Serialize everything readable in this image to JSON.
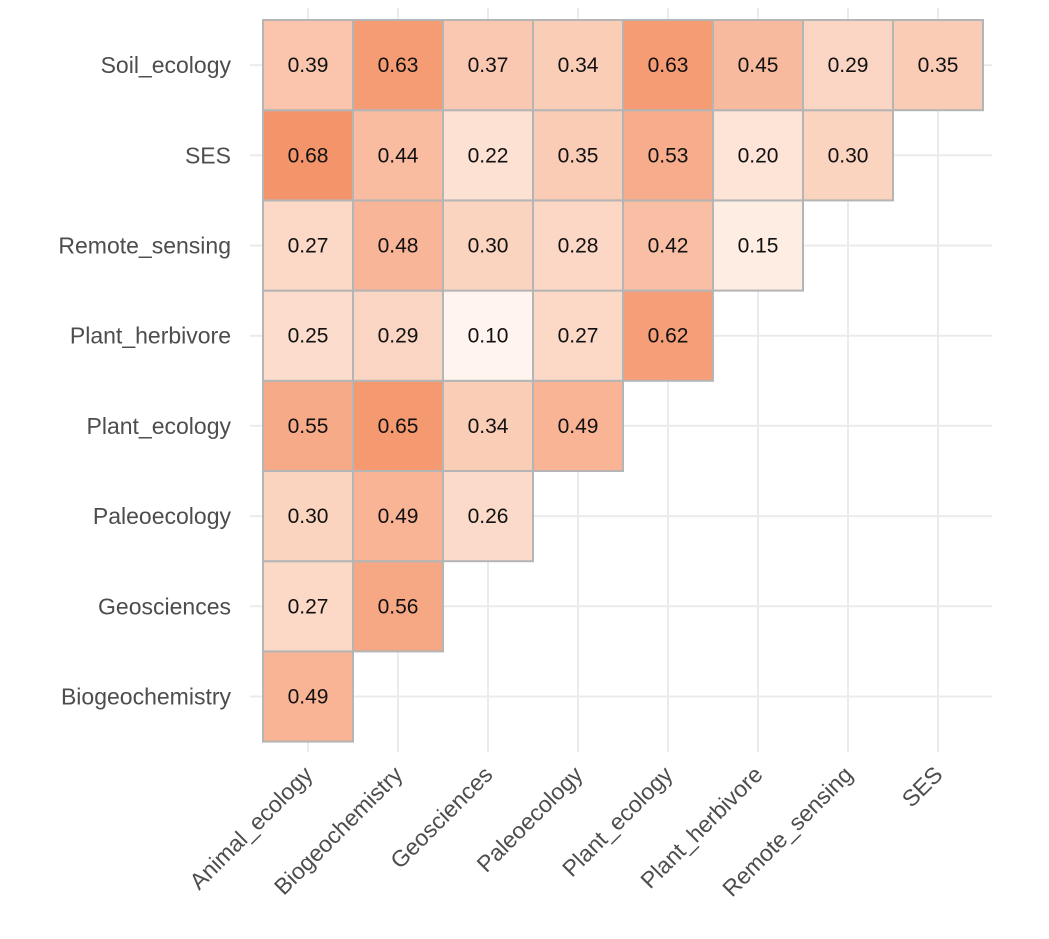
{
  "chart_data": {
    "type": "heatmap",
    "title": "",
    "xlabel": "",
    "ylabel": "",
    "x_categories": [
      "Animal_ecology",
      "Biogeochemistry",
      "Geosciences",
      "Paleoecology",
      "Plant_ecology",
      "Plant_herbivore",
      "Remote_sensing",
      "SES"
    ],
    "y_categories": [
      "Biogeochemistry",
      "Geosciences",
      "Paleoecology",
      "Plant_ecology",
      "Plant_herbivore",
      "Remote_sensing",
      "SES",
      "Soil_ecology"
    ],
    "color_scale": {
      "low": "#fff5ee",
      "high": "#f4946a",
      "min": 0.1,
      "max": 0.68
    },
    "legend": "none",
    "grid": true,
    "cells": [
      {
        "x": "Animal_ecology",
        "y": "Biogeochemistry",
        "value": 0.49,
        "label": "0.49"
      },
      {
        "x": "Animal_ecology",
        "y": "Geosciences",
        "value": 0.27,
        "label": "0.27"
      },
      {
        "x": "Biogeochemistry",
        "y": "Geosciences",
        "value": 0.56,
        "label": "0.56"
      },
      {
        "x": "Animal_ecology",
        "y": "Paleoecology",
        "value": 0.3,
        "label": "0.30"
      },
      {
        "x": "Biogeochemistry",
        "y": "Paleoecology",
        "value": 0.49,
        "label": "0.49"
      },
      {
        "x": "Geosciences",
        "y": "Paleoecology",
        "value": 0.26,
        "label": "0.26"
      },
      {
        "x": "Animal_ecology",
        "y": "Plant_ecology",
        "value": 0.55,
        "label": "0.55"
      },
      {
        "x": "Biogeochemistry",
        "y": "Plant_ecology",
        "value": 0.65,
        "label": "0.65"
      },
      {
        "x": "Geosciences",
        "y": "Plant_ecology",
        "value": 0.34,
        "label": "0.34"
      },
      {
        "x": "Paleoecology",
        "y": "Plant_ecology",
        "value": 0.49,
        "label": "0.49"
      },
      {
        "x": "Animal_ecology",
        "y": "Plant_herbivore",
        "value": 0.25,
        "label": "0.25"
      },
      {
        "x": "Biogeochemistry",
        "y": "Plant_herbivore",
        "value": 0.29,
        "label": "0.29"
      },
      {
        "x": "Geosciences",
        "y": "Plant_herbivore",
        "value": 0.1,
        "label": "0.10"
      },
      {
        "x": "Paleoecology",
        "y": "Plant_herbivore",
        "value": 0.27,
        "label": "0.27"
      },
      {
        "x": "Plant_ecology",
        "y": "Plant_herbivore",
        "value": 0.62,
        "label": "0.62"
      },
      {
        "x": "Animal_ecology",
        "y": "Remote_sensing",
        "value": 0.27,
        "label": "0.27"
      },
      {
        "x": "Biogeochemistry",
        "y": "Remote_sensing",
        "value": 0.48,
        "label": "0.48"
      },
      {
        "x": "Geosciences",
        "y": "Remote_sensing",
        "value": 0.3,
        "label": "0.30"
      },
      {
        "x": "Paleoecology",
        "y": "Remote_sensing",
        "value": 0.28,
        "label": "0.28"
      },
      {
        "x": "Plant_ecology",
        "y": "Remote_sensing",
        "value": 0.42,
        "label": "0.42"
      },
      {
        "x": "Plant_herbivore",
        "y": "Remote_sensing",
        "value": 0.15,
        "label": "0.15"
      },
      {
        "x": "Animal_ecology",
        "y": "SES",
        "value": 0.68,
        "label": "0.68"
      },
      {
        "x": "Biogeochemistry",
        "y": "SES",
        "value": 0.44,
        "label": "0.44"
      },
      {
        "x": "Geosciences",
        "y": "SES",
        "value": 0.22,
        "label": "0.22"
      },
      {
        "x": "Paleoecology",
        "y": "SES",
        "value": 0.35,
        "label": "0.35"
      },
      {
        "x": "Plant_ecology",
        "y": "SES",
        "value": 0.53,
        "label": "0.53"
      },
      {
        "x": "Plant_herbivore",
        "y": "SES",
        "value": 0.2,
        "label": "0.20"
      },
      {
        "x": "Remote_sensing",
        "y": "SES",
        "value": 0.3,
        "label": "0.30"
      },
      {
        "x": "Animal_ecology",
        "y": "Soil_ecology",
        "value": 0.39,
        "label": "0.39"
      },
      {
        "x": "Biogeochemistry",
        "y": "Soil_ecology",
        "value": 0.63,
        "label": "0.63"
      },
      {
        "x": "Geosciences",
        "y": "Soil_ecology",
        "value": 0.37,
        "label": "0.37"
      },
      {
        "x": "Paleoecology",
        "y": "Soil_ecology",
        "value": 0.34,
        "label": "0.34"
      },
      {
        "x": "Plant_ecology",
        "y": "Soil_ecology",
        "value": 0.63,
        "label": "0.63"
      },
      {
        "x": "Plant_herbivore",
        "y": "Soil_ecology",
        "value": 0.45,
        "label": "0.45"
      },
      {
        "x": "Remote_sensing",
        "y": "Soil_ecology",
        "value": 0.29,
        "label": "0.29"
      },
      {
        "x": "SES",
        "y": "Soil_ecology",
        "value": 0.35,
        "label": "0.35"
      }
    ]
  }
}
